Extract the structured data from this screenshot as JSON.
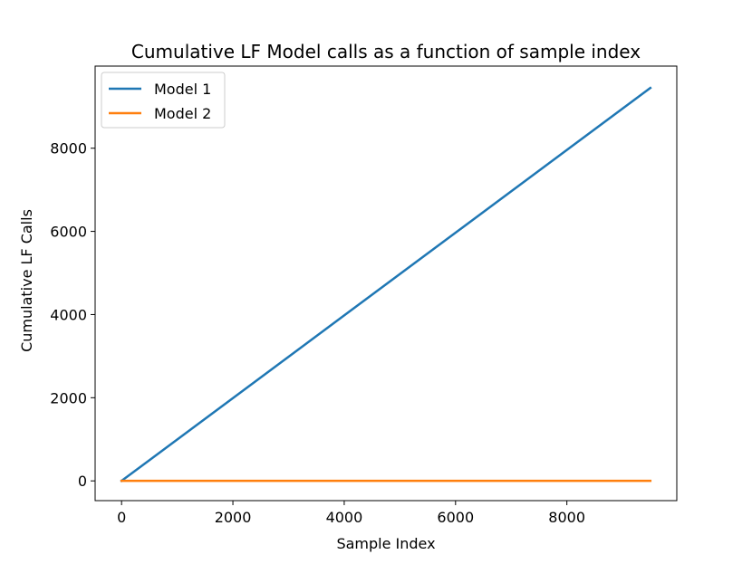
{
  "chart_data": {
    "type": "line",
    "title": "Cumulative LF Model calls as a function of sample index",
    "xlabel": "Sample Index",
    "ylabel": "Cumulative LF Calls",
    "xlim": [
      -475,
      9975
    ],
    "ylim": [
      -475,
      9975
    ],
    "xticks": [
      0,
      2000,
      4000,
      6000,
      8000
    ],
    "yticks": [
      0,
      2000,
      4000,
      6000,
      8000
    ],
    "xtick_labels": [
      "0",
      "2000",
      "4000",
      "6000",
      "8000"
    ],
    "ytick_labels": [
      "0",
      "2000",
      "4000",
      "6000",
      "8000"
    ],
    "grid": false,
    "legend_position": "top-left",
    "series": [
      {
        "name": "Model 1",
        "color": "#1f77b4",
        "x": [
          0,
          9500
        ],
        "y": [
          0,
          9450
        ]
      },
      {
        "name": "Model 2",
        "color": "#ff7f0e",
        "x": [
          0,
          9500
        ],
        "y": [
          0,
          0
        ]
      }
    ]
  }
}
